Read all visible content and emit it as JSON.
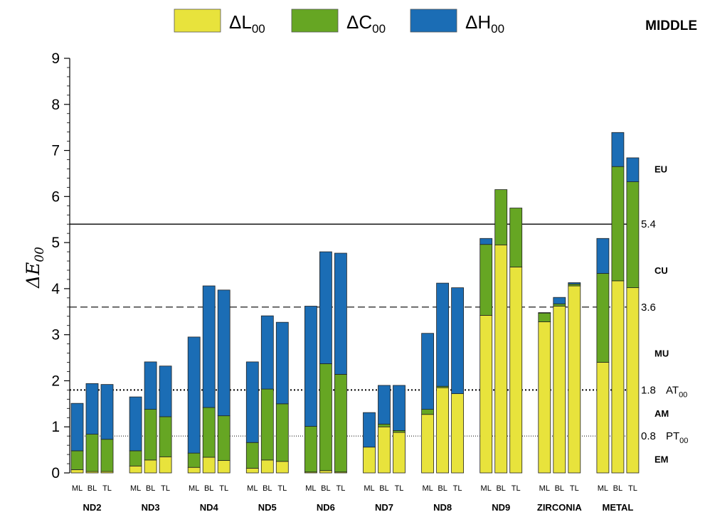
{
  "chart_data": {
    "type": "bar",
    "stacked": true,
    "panel_label": "MIDDLE",
    "ylabel": "ΔE",
    "ylabel_sub": "00",
    "ylim": [
      0,
      9
    ],
    "yticks": [
      "0",
      "1",
      "2",
      "3",
      "4",
      "5",
      "6",
      "7",
      "8",
      "9"
    ],
    "legend_position": "top",
    "series": [
      {
        "name": "ΔL",
        "sub": "00",
        "color": "#e8e33c"
      },
      {
        "name": "ΔC",
        "sub": "00",
        "color": "#66a623"
      },
      {
        "name": "ΔH",
        "sub": "00",
        "color": "#1b6db5"
      }
    ],
    "groups": [
      {
        "name": "ND2",
        "bars": [
          {
            "label": "ML",
            "L": 0.07,
            "C": 0.48,
            "H": 1.51
          },
          {
            "label": "BL",
            "L": 0.03,
            "C": 0.84,
            "H": 1.94
          },
          {
            "label": "TL",
            "L": 0.03,
            "C": 0.73,
            "H": 1.92
          }
        ]
      },
      {
        "name": "ND3",
        "bars": [
          {
            "label": "ML",
            "L": 0.15,
            "C": 0.48,
            "H": 1.65
          },
          {
            "label": "BL",
            "L": 0.28,
            "C": 1.38,
            "H": 2.41
          },
          {
            "label": "TL",
            "L": 0.35,
            "C": 1.22,
            "H": 2.32
          }
        ]
      },
      {
        "name": "ND4",
        "bars": [
          {
            "label": "ML",
            "L": 0.12,
            "C": 0.43,
            "H": 2.95
          },
          {
            "label": "BL",
            "L": 0.34,
            "C": 1.42,
            "H": 4.06
          },
          {
            "label": "TL",
            "L": 0.27,
            "C": 1.24,
            "H": 3.97
          }
        ]
      },
      {
        "name": "ND5",
        "bars": [
          {
            "label": "ML",
            "L": 0.1,
            "C": 0.66,
            "H": 2.41
          },
          {
            "label": "BL",
            "L": 0.28,
            "C": 1.82,
            "H": 3.41
          },
          {
            "label": "TL",
            "L": 0.25,
            "C": 1.5,
            "H": 3.27
          }
        ]
      },
      {
        "name": "ND6",
        "bars": [
          {
            "label": "ML",
            "L": 0.02,
            "C": 1.01,
            "H": 3.62
          },
          {
            "label": "BL",
            "L": 0.05,
            "C": 2.37,
            "H": 4.8
          },
          {
            "label": "TL",
            "L": 0.02,
            "C": 2.14,
            "H": 4.77
          }
        ]
      },
      {
        "name": "ND7",
        "bars": [
          {
            "label": "ML",
            "L": 0.56,
            "C": 0.56,
            "H": 1.31
          },
          {
            "label": "BL",
            "L": 1.0,
            "C": 1.06,
            "H": 1.9
          },
          {
            "label": "TL",
            "L": 0.88,
            "C": 0.92,
            "H": 1.9
          }
        ]
      },
      {
        "name": "ND8",
        "bars": [
          {
            "label": "ML",
            "L": 1.27,
            "C": 1.38,
            "H": 3.03
          },
          {
            "label": "BL",
            "L": 1.85,
            "C": 1.88,
            "H": 4.12
          },
          {
            "label": "TL",
            "L": 1.72,
            "C": 1.72,
            "H": 4.02
          }
        ]
      },
      {
        "name": "ND9",
        "bars": [
          {
            "label": "ML",
            "L": 3.42,
            "C": 4.96,
            "H": 5.09
          },
          {
            "label": "BL",
            "L": 4.95,
            "C": 6.15,
            "H": 6.15
          },
          {
            "label": "TL",
            "L": 4.47,
            "C": 5.75,
            "H": 5.75
          }
        ]
      },
      {
        "name": "ZIRCONIA",
        "bars": [
          {
            "label": "ML",
            "L": 3.28,
            "C": 3.47,
            "H": 3.48
          },
          {
            "label": "BL",
            "L": 3.62,
            "C": 3.67,
            "H": 3.81
          },
          {
            "label": "TL",
            "L": 4.06,
            "C": 4.1,
            "H": 4.13
          }
        ]
      },
      {
        "name": "METAL",
        "bars": [
          {
            "label": "ML",
            "L": 2.4,
            "C": 4.33,
            "H": 5.09
          },
          {
            "label": "BL",
            "L": 4.17,
            "C": 6.65,
            "H": 7.39
          },
          {
            "label": "TL",
            "L": 4.02,
            "C": 6.32,
            "H": 6.84
          }
        ]
      }
    ],
    "reference_lines": [
      {
        "value": 5.4,
        "label": "5.4",
        "style": "solid"
      },
      {
        "value": 3.6,
        "label": "3.6",
        "style": "dashed"
      },
      {
        "value": 1.8,
        "label": "1.8",
        "label2": "AT",
        "label2_sub": "00",
        "style": "dotted"
      },
      {
        "value": 0.8,
        "label": "0.8",
        "label2": "PT",
        "label2_sub": "00",
        "style": "fine-dotted"
      }
    ],
    "zones": [
      {
        "label": "EU",
        "y": 6.6
      },
      {
        "label": "CU",
        "y": 4.4
      },
      {
        "label": "MU",
        "y": 2.6
      },
      {
        "label": "AM",
        "y": 1.3
      },
      {
        "label": "EM",
        "y": 0.3
      }
    ]
  }
}
